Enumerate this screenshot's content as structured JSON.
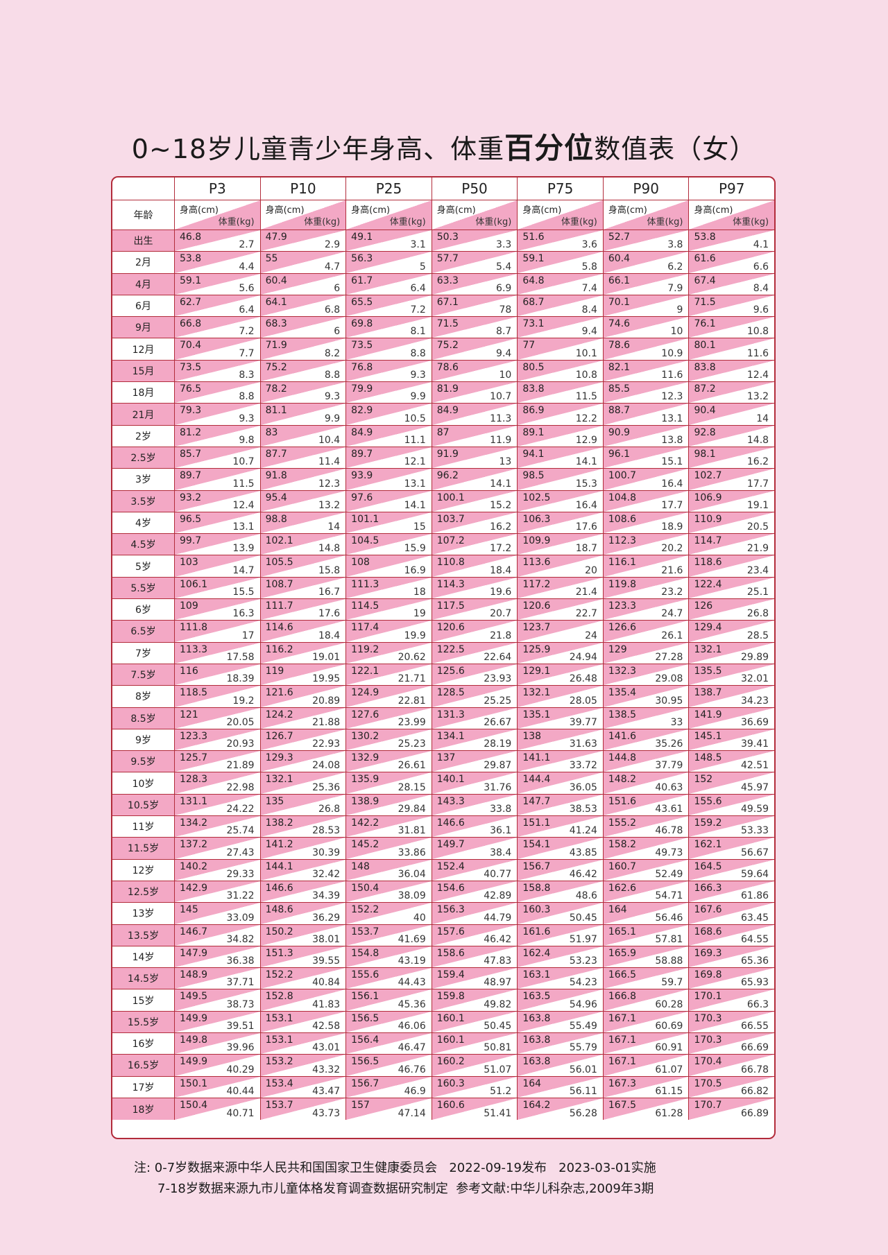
{
  "title": {
    "part1": "0~18岁儿童青少年身高、体重",
    "bold": "百分位",
    "part2": "数值表（女）"
  },
  "colors": {
    "background": "#f8dce8",
    "border": "#b22b3a",
    "cell_pink": "#f3a8c5"
  },
  "table": {
    "age_header": "年龄",
    "height_header": "身高(cm)",
    "weight_header": "体重(kg)",
    "percentiles": [
      "P3",
      "P10",
      "P25",
      "P50",
      "P75",
      "P90",
      "P97"
    ],
    "rows": [
      {
        "age": "出生",
        "h": [
          "46.8",
          "47.9",
          "49.1",
          "50.3",
          "51.6",
          "52.7",
          "53.8"
        ],
        "w": [
          "2.7",
          "2.9",
          "3.1",
          "3.3",
          "3.6",
          "3.8",
          "4.1"
        ]
      },
      {
        "age": "2月",
        "h": [
          "53.8",
          "55",
          "56.3",
          "57.7",
          "59.1",
          "60.4",
          "61.6"
        ],
        "w": [
          "4.4",
          "4.7",
          "5",
          "5.4",
          "5.8",
          "6.2",
          "6.6"
        ]
      },
      {
        "age": "4月",
        "h": [
          "59.1",
          "60.4",
          "61.7",
          "63.3",
          "64.8",
          "66.1",
          "67.4"
        ],
        "w": [
          "5.6",
          "6",
          "6.4",
          "6.9",
          "7.4",
          "7.9",
          "8.4"
        ]
      },
      {
        "age": "6月",
        "h": [
          "62.7",
          "64.1",
          "65.5",
          "67.1",
          "68.7",
          "70.1",
          "71.5"
        ],
        "w": [
          "6.4",
          "6.8",
          "7.2",
          "78",
          "8.4",
          "9",
          "9.6"
        ]
      },
      {
        "age": "9月",
        "h": [
          "66.8",
          "68.3",
          "69.8",
          "71.5",
          "73.1",
          "74.6",
          "76.1"
        ],
        "w": [
          "7.2",
          "6",
          "8.1",
          "8.7",
          "9.4",
          "10",
          "10.8"
        ]
      },
      {
        "age": "12月",
        "h": [
          "70.4",
          "71.9",
          "73.5",
          "75.2",
          "77",
          "78.6",
          "80.1"
        ],
        "w": [
          "7.7",
          "8.2",
          "8.8",
          "9.4",
          "10.1",
          "10.9",
          "11.6"
        ]
      },
      {
        "age": "15月",
        "h": [
          "73.5",
          "75.2",
          "76.8",
          "78.6",
          "80.5",
          "82.1",
          "83.8"
        ],
        "w": [
          "8.3",
          "8.8",
          "9.3",
          "10",
          "10.8",
          "11.6",
          "12.4"
        ]
      },
      {
        "age": "18月",
        "h": [
          "76.5",
          "78.2",
          "79.9",
          "81.9",
          "83.8",
          "85.5",
          "87.2"
        ],
        "w": [
          "8.8",
          "9.3",
          "9.9",
          "10.7",
          "11.5",
          "12.3",
          "13.2"
        ]
      },
      {
        "age": "21月",
        "h": [
          "79.3",
          "81.1",
          "82.9",
          "84.9",
          "86.9",
          "88.7",
          "90.4"
        ],
        "w": [
          "9.3",
          "9.9",
          "10.5",
          "11.3",
          "12.2",
          "13.1",
          "14"
        ]
      },
      {
        "age": "2岁",
        "h": [
          "81.2",
          "83",
          "84.9",
          "87",
          "89.1",
          "90.9",
          "92.8"
        ],
        "w": [
          "9.8",
          "10.4",
          "11.1",
          "11.9",
          "12.9",
          "13.8",
          "14.8"
        ]
      },
      {
        "age": "2.5岁",
        "h": [
          "85.7",
          "87.7",
          "89.7",
          "91.9",
          "94.1",
          "96.1",
          "98.1"
        ],
        "w": [
          "10.7",
          "11.4",
          "12.1",
          "13",
          "14.1",
          "15.1",
          "16.2"
        ]
      },
      {
        "age": "3岁",
        "h": [
          "89.7",
          "91.8",
          "93.9",
          "96.2",
          "98.5",
          "100.7",
          "102.7"
        ],
        "w": [
          "11.5",
          "12.3",
          "13.1",
          "14.1",
          "15.3",
          "16.4",
          "17.7"
        ]
      },
      {
        "age": "3.5岁",
        "h": [
          "93.2",
          "95.4",
          "97.6",
          "100.1",
          "102.5",
          "104.8",
          "106.9"
        ],
        "w": [
          "12.4",
          "13.2",
          "14.1",
          "15.2",
          "16.4",
          "17.7",
          "19.1"
        ]
      },
      {
        "age": "4岁",
        "h": [
          "96.5",
          "98.8",
          "101.1",
          "103.7",
          "106.3",
          "108.6",
          "110.9"
        ],
        "w": [
          "13.1",
          "14",
          "15",
          "16.2",
          "17.6",
          "18.9",
          "20.5"
        ]
      },
      {
        "age": "4.5岁",
        "h": [
          "99.7",
          "102.1",
          "104.5",
          "107.2",
          "109.9",
          "112.3",
          "114.7"
        ],
        "w": [
          "13.9",
          "14.8",
          "15.9",
          "17.2",
          "18.7",
          "20.2",
          "21.9"
        ]
      },
      {
        "age": "5岁",
        "h": [
          "103",
          "105.5",
          "108",
          "110.8",
          "113.6",
          "116.1",
          "118.6"
        ],
        "w": [
          "14.7",
          "15.8",
          "16.9",
          "18.4",
          "20",
          "21.6",
          "23.4"
        ]
      },
      {
        "age": "5.5岁",
        "h": [
          "106.1",
          "108.7",
          "111.3",
          "114.3",
          "117.2",
          "119.8",
          "122.4"
        ],
        "w": [
          "15.5",
          "16.7",
          "18",
          "19.6",
          "21.4",
          "23.2",
          "25.1"
        ]
      },
      {
        "age": "6岁",
        "h": [
          "109",
          "111.7",
          "114.5",
          "117.5",
          "120.6",
          "123.3",
          "126"
        ],
        "w": [
          "16.3",
          "17.6",
          "19",
          "20.7",
          "22.7",
          "24.7",
          "26.8"
        ]
      },
      {
        "age": "6.5岁",
        "h": [
          "111.8",
          "114.6",
          "117.4",
          "120.6",
          "123.7",
          "126.6",
          "129.4"
        ],
        "w": [
          "17",
          "18.4",
          "19.9",
          "21.8",
          "24",
          "26.1",
          "28.5"
        ]
      },
      {
        "age": "7岁",
        "h": [
          "113.3",
          "116.2",
          "119.2",
          "122.5",
          "125.9",
          "129",
          "132.1"
        ],
        "w": [
          "17.58",
          "19.01",
          "20.62",
          "22.64",
          "24.94",
          "27.28",
          "29.89"
        ]
      },
      {
        "age": "7.5岁",
        "h": [
          "116",
          "119",
          "122.1",
          "125.6",
          "129.1",
          "132.3",
          "135.5"
        ],
        "w": [
          "18.39",
          "19.95",
          "21.71",
          "23.93",
          "26.48",
          "29.08",
          "32.01"
        ]
      },
      {
        "age": "8岁",
        "h": [
          "118.5",
          "121.6",
          "124.9",
          "128.5",
          "132.1",
          "135.4",
          "138.7"
        ],
        "w": [
          "19.2",
          "20.89",
          "22.81",
          "25.25",
          "28.05",
          "30.95",
          "34.23"
        ]
      },
      {
        "age": "8.5岁",
        "h": [
          "121",
          "124.2",
          "127.6",
          "131.3",
          "135.1",
          "138.5",
          "141.9"
        ],
        "w": [
          "20.05",
          "21.88",
          "23.99",
          "26.67",
          "39.77",
          "33",
          "36.69"
        ]
      },
      {
        "age": "9岁",
        "h": [
          "123.3",
          "126.7",
          "130.2",
          "134.1",
          "138",
          "141.6",
          "145.1"
        ],
        "w": [
          "20.93",
          "22.93",
          "25.23",
          "28.19",
          "31.63",
          "35.26",
          "39.41"
        ]
      },
      {
        "age": "9.5岁",
        "h": [
          "125.7",
          "129.3",
          "132.9",
          "137",
          "141.1",
          "144.8",
          "148.5"
        ],
        "w": [
          "21.89",
          "24.08",
          "26.61",
          "29.87",
          "33.72",
          "37.79",
          "42.51"
        ]
      },
      {
        "age": "10岁",
        "h": [
          "128.3",
          "132.1",
          "135.9",
          "140.1",
          "144.4",
          "148.2",
          "152"
        ],
        "w": [
          "22.98",
          "25.36",
          "28.15",
          "31.76",
          "36.05",
          "40.63",
          "45.97"
        ]
      },
      {
        "age": "10.5岁",
        "h": [
          "131.1",
          "135",
          "138.9",
          "143.3",
          "147.7",
          "151.6",
          "155.6"
        ],
        "w": [
          "24.22",
          "26.8",
          "29.84",
          "33.8",
          "38.53",
          "43.61",
          "49.59"
        ]
      },
      {
        "age": "11岁",
        "h": [
          "134.2",
          "138.2",
          "142.2",
          "146.6",
          "151.1",
          "155.2",
          "159.2"
        ],
        "w": [
          "25.74",
          "28.53",
          "31.81",
          "36.1",
          "41.24",
          "46.78",
          "53.33"
        ]
      },
      {
        "age": "11.5岁",
        "h": [
          "137.2",
          "141.2",
          "145.2",
          "149.7",
          "154.1",
          "158.2",
          "162.1"
        ],
        "w": [
          "27.43",
          "30.39",
          "33.86",
          "38.4",
          "43.85",
          "49.73",
          "56.67"
        ]
      },
      {
        "age": "12岁",
        "h": [
          "140.2",
          "144.1",
          "148",
          "152.4",
          "156.7",
          "160.7",
          "164.5"
        ],
        "w": [
          "29.33",
          "32.42",
          "36.04",
          "40.77",
          "46.42",
          "52.49",
          "59.64"
        ]
      },
      {
        "age": "12.5岁",
        "h": [
          "142.9",
          "146.6",
          "150.4",
          "154.6",
          "158.8",
          "162.6",
          "166.3"
        ],
        "w": [
          "31.22",
          "34.39",
          "38.09",
          "42.89",
          "48.6",
          "54.71",
          "61.86"
        ]
      },
      {
        "age": "13岁",
        "h": [
          "145",
          "148.6",
          "152.2",
          "156.3",
          "160.3",
          "164",
          "167.6"
        ],
        "w": [
          "33.09",
          "36.29",
          "40",
          "44.79",
          "50.45",
          "56.46",
          "63.45"
        ]
      },
      {
        "age": "13.5岁",
        "h": [
          "146.7",
          "150.2",
          "153.7",
          "157.6",
          "161.6",
          "165.1",
          "168.6"
        ],
        "w": [
          "34.82",
          "38.01",
          "41.69",
          "46.42",
          "51.97",
          "57.81",
          "64.55"
        ]
      },
      {
        "age": "14岁",
        "h": [
          "147.9",
          "151.3",
          "154.8",
          "158.6",
          "162.4",
          "165.9",
          "169.3"
        ],
        "w": [
          "36.38",
          "39.55",
          "43.19",
          "47.83",
          "53.23",
          "58.88",
          "65.36"
        ]
      },
      {
        "age": "14.5岁",
        "h": [
          "148.9",
          "152.2",
          "155.6",
          "159.4",
          "163.1",
          "166.5",
          "169.8"
        ],
        "w": [
          "37.71",
          "40.84",
          "44.43",
          "48.97",
          "54.23",
          "59.7",
          "65.93"
        ]
      },
      {
        "age": "15岁",
        "h": [
          "149.5",
          "152.8",
          "156.1",
          "159.8",
          "163.5",
          "166.8",
          "170.1"
        ],
        "w": [
          "38.73",
          "41.83",
          "45.36",
          "49.82",
          "54.96",
          "60.28",
          "66.3"
        ]
      },
      {
        "age": "15.5岁",
        "h": [
          "149.9",
          "153.1",
          "156.5",
          "160.1",
          "163.8",
          "167.1",
          "170.3"
        ],
        "w": [
          "39.51",
          "42.58",
          "46.06",
          "50.45",
          "55.49",
          "60.69",
          "66.55"
        ]
      },
      {
        "age": "16岁",
        "h": [
          "149.8",
          "153.1",
          "156.4",
          "160.1",
          "163.8",
          "167.1",
          "170.3"
        ],
        "w": [
          "39.96",
          "43.01",
          "46.47",
          "50.81",
          "55.79",
          "60.91",
          "66.69"
        ]
      },
      {
        "age": "16.5岁",
        "h": [
          "149.9",
          "153.2",
          "156.5",
          "160.2",
          "163.8",
          "167.1",
          "170.4"
        ],
        "w": [
          "40.29",
          "43.32",
          "46.76",
          "51.07",
          "56.01",
          "61.07",
          "66.78"
        ]
      },
      {
        "age": "17岁",
        "h": [
          "150.1",
          "153.4",
          "156.7",
          "160.3",
          "164",
          "167.3",
          "170.5"
        ],
        "w": [
          "40.44",
          "43.47",
          "46.9",
          "51.2",
          "56.11",
          "61.15",
          "66.82"
        ]
      },
      {
        "age": "18岁",
        "h": [
          "150.4",
          "153.7",
          "157",
          "160.6",
          "164.2",
          "167.5",
          "170.7"
        ],
        "w": [
          "40.71",
          "43.73",
          "47.14",
          "51.41",
          "56.28",
          "61.28",
          "66.89"
        ]
      }
    ]
  },
  "notes": {
    "line1": "注: 0-7岁数据来源中华人民共和国国家卫生健康委员会   2022-09-19发布   2023-03-01实施",
    "line2": "7-18岁数据来源九市儿童体格发育调查数据研究制定  参考文献:中华儿科杂志,2009年3期"
  }
}
